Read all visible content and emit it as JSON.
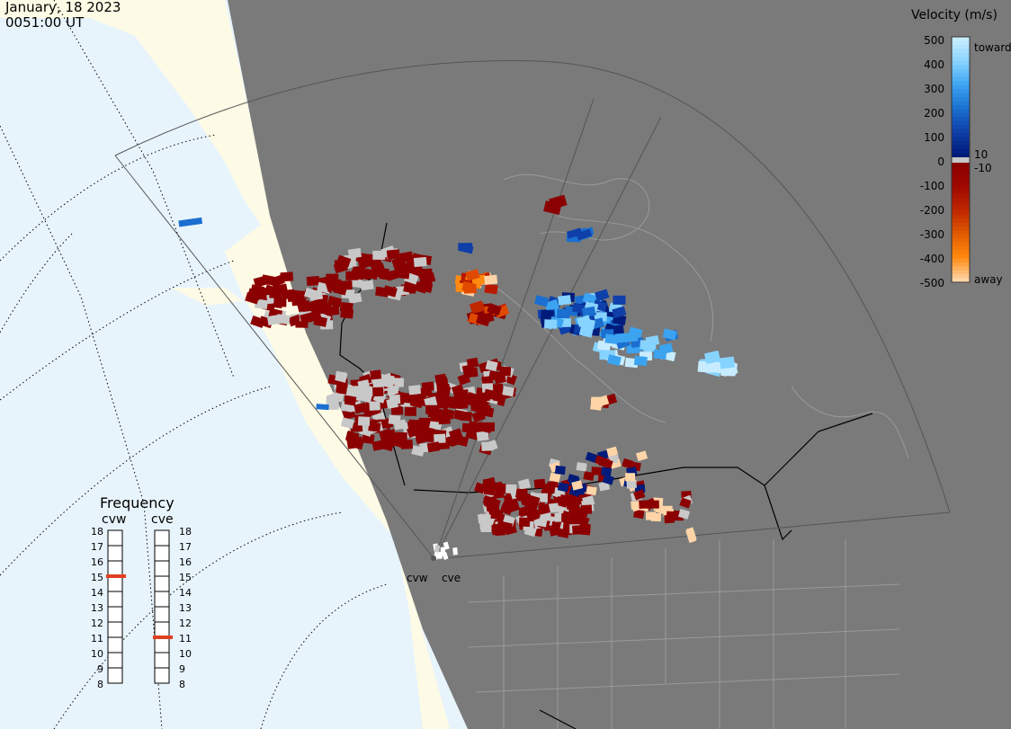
{
  "header": {
    "date": "January, 18 2023",
    "time": "0051:00 UT"
  },
  "legend": {
    "title": "Velocity (m/s)",
    "ticks": [
      "500",
      "400",
      "300",
      "200",
      "100",
      "0",
      "-100",
      "-200",
      "-300",
      "-400",
      "-500"
    ],
    "label_10": "10",
    "label_neg10": "-10",
    "toward": "toward",
    "away": "away",
    "colors": [
      "#c8ecff",
      "#87d3ff",
      "#3ba3f0",
      "#1a6fd0",
      "#0f3fa8",
      "#001b7a",
      "#8b0000",
      "#b81a00",
      "#e04a00",
      "#ff8a10",
      "#ffd5a8"
    ]
  },
  "frequency": {
    "title": "Frequency",
    "left_label": "cvw",
    "right_label": "cve",
    "scale": [
      "18",
      "17",
      "16",
      "15",
      "14",
      "13",
      "12",
      "11",
      "10",
      "9",
      "8"
    ],
    "cvw_mhz": 15,
    "cve_mhz": 11,
    "marker_color": "#e04020"
  },
  "radars": {
    "cvw": "cvw",
    "cve": "cve"
  },
  "colors": {
    "ocean": "#e8f4fc",
    "land": "#fdfbe6",
    "night": "#7a7a7a",
    "echo_dark_red": "#8b0000",
    "ground_scatter": "#c8c8c8"
  }
}
